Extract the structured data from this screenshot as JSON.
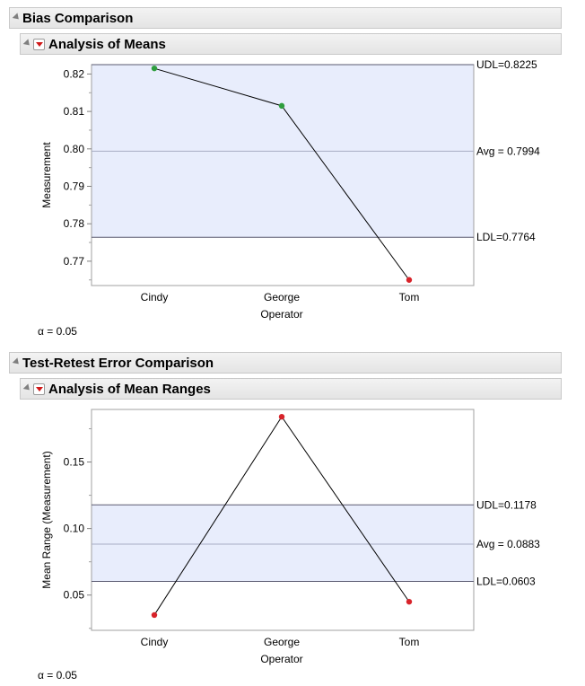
{
  "sections": [
    {
      "title": "Bias Comparison",
      "sub_title": "Analysis of Means",
      "alpha_text": "α = 0.05"
    },
    {
      "title": "Test-Retest Error Comparison",
      "sub_title": "Analysis of Mean Ranges",
      "alpha_text": "α = 0.05"
    }
  ],
  "colors": {
    "band": "#e8edfc",
    "in_point": "#2e9e3e",
    "out_point": "#d8232a",
    "line": "#000000",
    "limit_line": "#5a5a70"
  },
  "chart_data": [
    {
      "type": "line",
      "categories": [
        "Cindy",
        "George",
        "Tom"
      ],
      "values": [
        0.8215,
        0.8115,
        0.765
      ],
      "point_status": [
        "in",
        "in",
        "out"
      ],
      "xlabel": "Operator",
      "ylabel": "Measurement",
      "ylim": [
        0.7635,
        0.8225
      ],
      "ticks": [
        0.77,
        0.78,
        0.79,
        0.8,
        0.81,
        0.82
      ],
      "tick_labels": [
        "0.77",
        "0.78",
        "0.79",
        "0.80",
        "0.81",
        "0.82"
      ],
      "udl": 0.8225,
      "avg": 0.7994,
      "ldl": 0.7764,
      "udl_label": "UDL=0.8225",
      "avg_label": "Avg = 0.7994",
      "ldl_label": "LDL=0.7764"
    },
    {
      "type": "line",
      "categories": [
        "Cindy",
        "George",
        "Tom"
      ],
      "values": [
        0.035,
        0.184,
        0.045
      ],
      "point_status": [
        "out",
        "out",
        "out"
      ],
      "xlabel": "Operator",
      "ylabel": "Mean Range (Measurement)",
      "ylim": [
        0.0235,
        0.1895
      ],
      "ticks": [
        0.05,
        0.1,
        0.15
      ],
      "tick_labels": [
        "0.05",
        "0.10",
        "0.15"
      ],
      "udl": 0.1178,
      "avg": 0.0883,
      "ldl": 0.0603,
      "udl_label": "UDL=0.1178",
      "avg_label": "Avg = 0.0883",
      "ldl_label": "LDL=0.0603"
    }
  ]
}
